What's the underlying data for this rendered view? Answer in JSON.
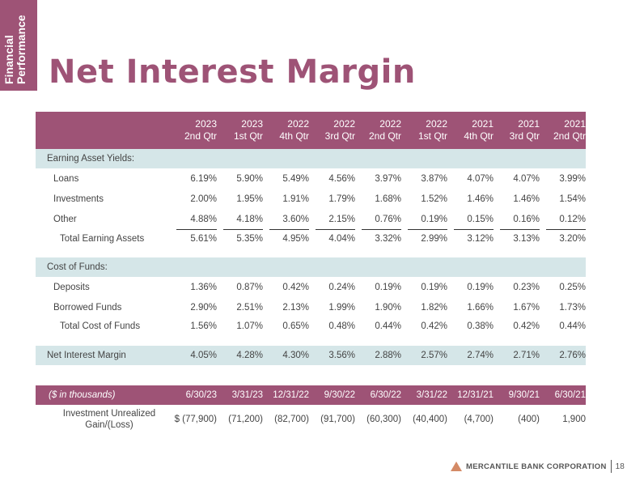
{
  "side_tab": {
    "line1": "Financial",
    "line2": "Performance"
  },
  "title": "Net Interest Margin",
  "header": {
    "periods": [
      [
        "2023",
        "2nd Qtr"
      ],
      [
        "2023",
        "1st Qtr"
      ],
      [
        "2022",
        "4th Qtr"
      ],
      [
        "2022",
        "3rd Qtr"
      ],
      [
        "2022",
        "2nd Qtr"
      ],
      [
        "2022",
        "1st Qtr"
      ],
      [
        "2021",
        "4th Qtr"
      ],
      [
        "2021",
        "3rd Qtr"
      ],
      [
        "2021",
        "2nd Qtr"
      ]
    ]
  },
  "earning_asset_yields": {
    "label": "Earning Asset Yields:",
    "rows": [
      {
        "label": "Loans",
        "values": [
          "6.19%",
          "5.90%",
          "5.49%",
          "4.56%",
          "3.97%",
          "3.87%",
          "4.07%",
          "4.07%",
          "3.99%"
        ]
      },
      {
        "label": "Investments",
        "values": [
          "2.00%",
          "1.95%",
          "1.91%",
          "1.79%",
          "1.68%",
          "1.52%",
          "1.46%",
          "1.46%",
          "1.54%"
        ]
      },
      {
        "label": "Other",
        "values": [
          "4.88%",
          "4.18%",
          "3.60%",
          "2.15%",
          "0.76%",
          "0.19%",
          "0.15%",
          "0.16%",
          "0.12%"
        ]
      }
    ],
    "total": {
      "label": "Total Earning Assets",
      "values": [
        "5.61%",
        "5.35%",
        "4.95%",
        "4.04%",
        "3.32%",
        "2.99%",
        "3.12%",
        "3.13%",
        "3.20%"
      ]
    }
  },
  "cost_of_funds": {
    "label": "Cost of Funds:",
    "rows": [
      {
        "label": "Deposits",
        "values": [
          "1.36%",
          "0.87%",
          "0.42%",
          "0.24%",
          "0.19%",
          "0.19%",
          "0.19%",
          "0.23%",
          "0.25%"
        ]
      },
      {
        "label": "Borrowed Funds",
        "values": [
          "2.90%",
          "2.51%",
          "2.13%",
          "1.99%",
          "1.90%",
          "1.82%",
          "1.66%",
          "1.67%",
          "1.73%"
        ]
      }
    ],
    "total": {
      "label": "Total Cost of Funds",
      "values": [
        "1.56%",
        "1.07%",
        "0.65%",
        "0.48%",
        "0.44%",
        "0.42%",
        "0.38%",
        "0.42%",
        "0.44%"
      ]
    }
  },
  "net_interest_margin": {
    "label": "Net Interest Margin",
    "values": [
      "4.05%",
      "4.28%",
      "4.30%",
      "3.56%",
      "2.88%",
      "2.57%",
      "2.74%",
      "2.71%",
      "2.76%"
    ]
  },
  "unrealized": {
    "header_label": "($ in thousands)",
    "dates": [
      "6/30/23",
      "3/31/23",
      "12/31/22",
      "9/30/22",
      "6/30/22",
      "3/31/22",
      "12/31/21",
      "9/30/21",
      "6/30/21"
    ],
    "row_label_line1": "Investment Unrealized",
    "row_label_line2": "Gain/(Loss)",
    "values": [
      "$  (77,900)",
      "(71,200)",
      "(82,700)",
      "(91,700)",
      "(60,300)",
      "(40,400)",
      "(4,700)",
      "(400)",
      "1,900"
    ]
  },
  "footer": {
    "company": "MERCANTILE BANK CORPORATION",
    "page": "18"
  },
  "colors": {
    "brand": "#9e5376",
    "band": "#d5e6e8",
    "logo_accent": "#d48a66"
  }
}
